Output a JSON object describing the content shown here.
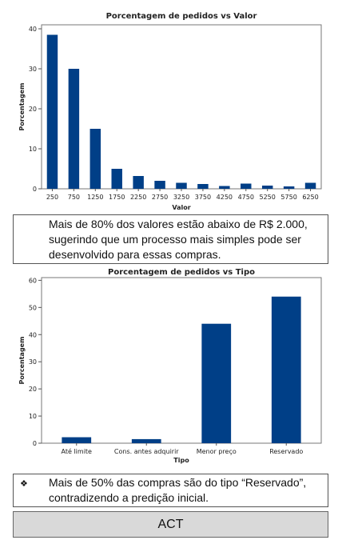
{
  "chart_data": [
    {
      "type": "bar",
      "title": "Porcentagem de pedidos vs Valor",
      "xlabel": "Valor",
      "ylabel": "Porcentagem",
      "categories": [
        "250",
        "750",
        "1250",
        "1750",
        "2250",
        "2750",
        "3250",
        "3750",
        "4250",
        "4750",
        "5250",
        "5750",
        "6250"
      ],
      "values": [
        38.5,
        30,
        15,
        5,
        3.2,
        2,
        1.5,
        1.2,
        0.7,
        1.3,
        0.8,
        0.6,
        1.5
      ],
      "ylim": [
        0,
        41
      ],
      "yticks": [
        0,
        10,
        20,
        30,
        40
      ],
      "grid": false,
      "color": "#003f87"
    },
    {
      "type": "bar",
      "title": "Porcentagem de pedidos vs Tipo",
      "xlabel": "Tipo",
      "ylabel": "Porcentagem",
      "categories": [
        "Até limite",
        "Cons. antes adquirir",
        "Menor preço",
        "Reservado"
      ],
      "values": [
        2.2,
        1.5,
        44,
        54
      ],
      "ylim": [
        0,
        61
      ],
      "yticks": [
        0,
        10,
        20,
        30,
        40,
        50,
        60
      ],
      "grid": false,
      "color": "#003f87"
    }
  ],
  "notes": {
    "note1": "Mais de 80% dos valores estão abaixo de R$ 2.000, sugerindo que um processo mais simples pode ser desenvolvido para essas compras.",
    "note2_bullet": "❖",
    "note2": "Mais de 50% das compras são do tipo “Reservado”, contradizendo a predição inicial."
  },
  "act_label": "ACT"
}
